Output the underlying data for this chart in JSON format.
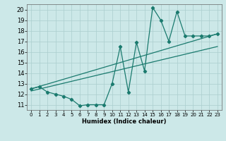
{
  "xlabel": "Humidex (Indice chaleur)",
  "bg_color": "#cce8e8",
  "grid_color": "#aacece",
  "line_color": "#1a7a6e",
  "xlim": [
    -0.5,
    23.5
  ],
  "ylim": [
    10.5,
    20.5
  ],
  "yticks": [
    11,
    12,
    13,
    14,
    15,
    16,
    17,
    18,
    19,
    20
  ],
  "xticks": [
    0,
    1,
    2,
    3,
    4,
    5,
    6,
    7,
    8,
    9,
    10,
    11,
    12,
    13,
    14,
    15,
    16,
    17,
    18,
    19,
    20,
    21,
    22,
    23
  ],
  "line1_x": [
    0,
    1,
    2,
    3,
    4,
    5,
    6,
    7,
    8,
    9,
    10,
    11,
    12,
    13,
    14,
    15,
    16,
    17,
    18,
    19,
    20,
    21,
    22,
    23
  ],
  "line1_y": [
    12.5,
    12.7,
    12.2,
    12.0,
    11.8,
    11.5,
    10.9,
    11.0,
    11.0,
    11.0,
    13.0,
    16.5,
    12.2,
    16.9,
    14.2,
    20.2,
    19.0,
    17.0,
    19.8,
    17.5,
    17.5,
    17.5,
    17.5,
    17.7
  ],
  "line2_x": [
    0,
    23
  ],
  "line2_y": [
    12.5,
    17.7
  ],
  "line3_x": [
    0,
    23
  ],
  "line3_y": [
    12.3,
    16.5
  ]
}
